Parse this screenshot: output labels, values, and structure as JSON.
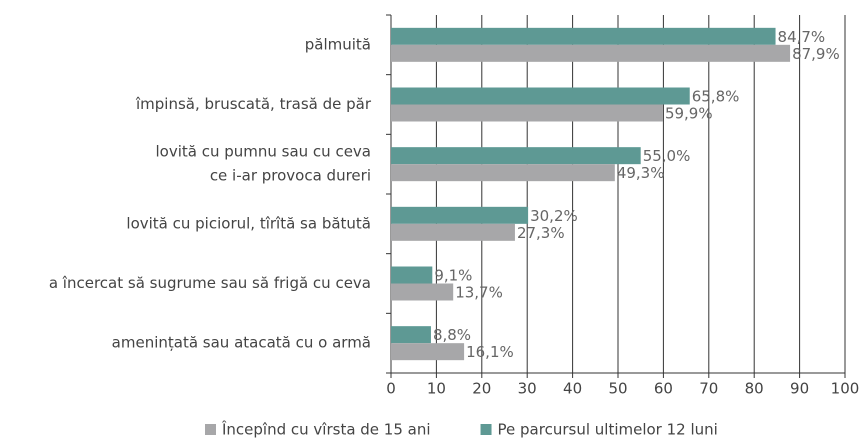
{
  "chart_data": {
    "type": "hbar",
    "categories": [
      [
        "pălmuită"
      ],
      [
        "împinsă, bruscată, trasă de păr"
      ],
      [
        "lovită cu pumnu sau cu ceva",
        "ce i-ar provoca dureri"
      ],
      [
        "lovită cu piciorul, tîrîtă sa bătută"
      ],
      [
        "a încercat să sugrume sau să frigă cu ceva"
      ],
      [
        "amenințată sau atacată cu o armă"
      ]
    ],
    "series": [
      {
        "name": "Începînd cu vîrsta de 15 ani",
        "color": "#a7a7a9",
        "values": [
          87.9,
          59.9,
          49.3,
          27.3,
          13.7,
          16.1
        ],
        "value_labels": [
          "87,9%",
          "59,9%",
          "49,3%",
          "27,3%",
          "13,7%",
          "16,1%"
        ]
      },
      {
        "name": "Pe parcursul ultimelor 12 luni",
        "color": "#5e9994",
        "values": [
          84.7,
          65.8,
          55.0,
          30.2,
          9.1,
          8.8
        ],
        "value_labels": [
          "84,7%",
          "65,8%",
          "55,0%",
          "30,2%",
          "9,1%",
          "8,8%"
        ]
      }
    ],
    "xlim": [
      0,
      100
    ],
    "xticks": [
      0,
      10,
      20,
      30,
      40,
      50,
      60,
      70,
      80,
      90,
      100
    ],
    "grid": true,
    "legend": "bottom"
  }
}
